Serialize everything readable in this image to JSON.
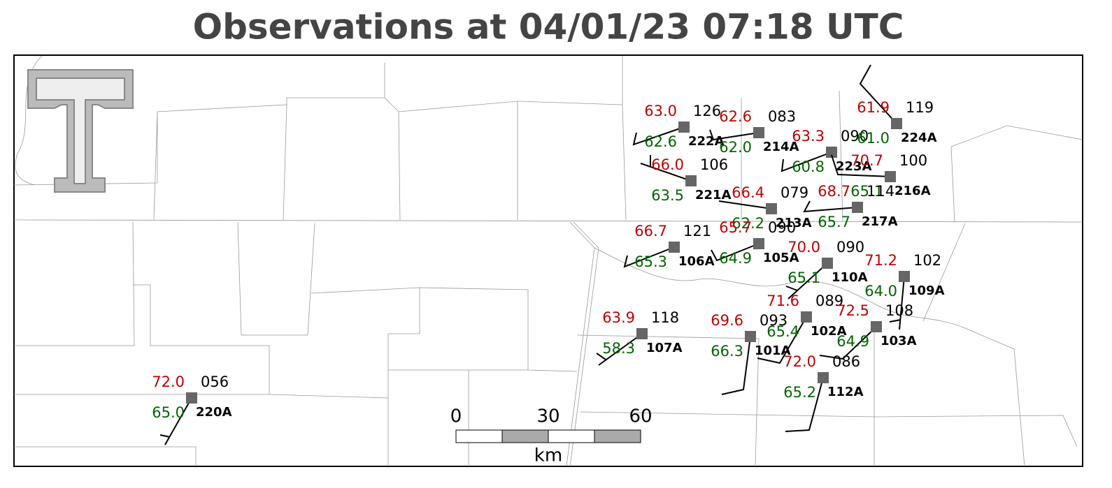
{
  "header": {
    "title": "Observations at 04/01/23 07:18 UTC"
  },
  "stations": [
    {
      "id": "222A",
      "temperature": "63.0",
      "dewpoint": "62.6",
      "pressure": "126"
    },
    {
      "id": "214A",
      "temperature": "62.6",
      "dewpoint": "62.0",
      "pressure": "083"
    },
    {
      "id": "223A",
      "temperature": "63.3",
      "dewpoint": "60.8",
      "pressure": "090"
    },
    {
      "id": "224A",
      "temperature": "61.9",
      "dewpoint": "61.0",
      "pressure": "119"
    },
    {
      "id": "216A",
      "temperature": "70.7",
      "dewpoint": "65.1",
      "pressure": "100"
    },
    {
      "id": "221A",
      "temperature": "66.0",
      "dewpoint": "63.5",
      "pressure": "106"
    },
    {
      "id": "213A",
      "temperature": "66.4",
      "dewpoint": "62.2",
      "pressure": "079"
    },
    {
      "id": "217A",
      "temperature": "68.7",
      "dewpoint": "65.7",
      "pressure": "114"
    },
    {
      "id": "106A",
      "temperature": "66.7",
      "dewpoint": "65.3",
      "pressure": "121"
    },
    {
      "id": "105A",
      "temperature": "65.7",
      "dewpoint": "64.9",
      "pressure": "090"
    },
    {
      "id": "110A",
      "temperature": "70.0",
      "dewpoint": "65.1",
      "pressure": "090"
    },
    {
      "id": "109A",
      "temperature": "71.2",
      "dewpoint": "64.0",
      "pressure": "102"
    },
    {
      "id": "107A",
      "temperature": "63.9",
      "dewpoint": "58.3",
      "pressure": "118"
    },
    {
      "id": "101A",
      "temperature": "69.6",
      "dewpoint": "66.3",
      "pressure": "093"
    },
    {
      "id": "102A",
      "temperature": "71.6",
      "dewpoint": "65.4",
      "pressure": "089"
    },
    {
      "id": "103A",
      "temperature": "72.5",
      "dewpoint": "64.9",
      "pressure": "108"
    },
    {
      "id": "112A",
      "temperature": "72.0",
      "dewpoint": "65.2",
      "pressure": "086"
    },
    {
      "id": "220A",
      "temperature": "72.0",
      "dewpoint": "65.0",
      "pressure": "056"
    }
  ],
  "scale_bar": {
    "ticks": [
      0,
      30,
      60
    ],
    "unit": "km"
  }
}
